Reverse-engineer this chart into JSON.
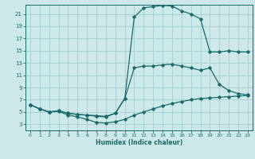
{
  "xlabel": "Humidex (Indice chaleur)",
  "bg_color": "#cce8e8",
  "grid_color": "#99cccc",
  "line_color": "#1a6b6b",
  "xlim": [
    -0.5,
    23.5
  ],
  "ylim": [
    2,
    22.5
  ],
  "xticks": [
    0,
    1,
    2,
    3,
    4,
    5,
    6,
    7,
    8,
    9,
    10,
    11,
    12,
    13,
    14,
    15,
    16,
    17,
    18,
    19,
    20,
    21,
    22,
    23
  ],
  "yticks": [
    3,
    5,
    7,
    9,
    11,
    13,
    15,
    17,
    19,
    21
  ],
  "line1_x": [
    0,
    1,
    2,
    3,
    4,
    5,
    6,
    7,
    8,
    9,
    10,
    11,
    12,
    13,
    14,
    15,
    16,
    17,
    18,
    19,
    20,
    21,
    22,
    23
  ],
  "line1_y": [
    6.2,
    5.5,
    5.0,
    5.1,
    4.5,
    4.2,
    3.8,
    3.3,
    3.2,
    3.4,
    3.8,
    4.5,
    5.0,
    5.5,
    6.0,
    6.4,
    6.7,
    7.0,
    7.2,
    7.3,
    7.4,
    7.5,
    7.6,
    7.7
  ],
  "line2_x": [
    0,
    1,
    2,
    3,
    4,
    5,
    6,
    7,
    8,
    9,
    10,
    11,
    12,
    13,
    14,
    15,
    16,
    17,
    18,
    19,
    20,
    21,
    22,
    23
  ],
  "line2_y": [
    6.2,
    5.5,
    5.0,
    5.2,
    4.8,
    4.6,
    4.5,
    4.4,
    4.3,
    4.8,
    7.2,
    12.2,
    12.5,
    12.5,
    12.7,
    12.8,
    12.5,
    12.2,
    11.8,
    12.2,
    9.5,
    8.5,
    8.0,
    7.8
  ],
  "line3_x": [
    0,
    1,
    2,
    3,
    4,
    5,
    6,
    7,
    8,
    9,
    10,
    11,
    12,
    13,
    14,
    15,
    16,
    17,
    18,
    19,
    20,
    21,
    22,
    23
  ],
  "line3_y": [
    6.2,
    5.5,
    5.0,
    5.2,
    4.8,
    4.6,
    4.5,
    4.3,
    4.2,
    4.8,
    7.2,
    20.5,
    22.0,
    22.2,
    22.4,
    22.3,
    21.5,
    21.0,
    20.2,
    14.8,
    14.8,
    15.0,
    14.8,
    14.8
  ]
}
